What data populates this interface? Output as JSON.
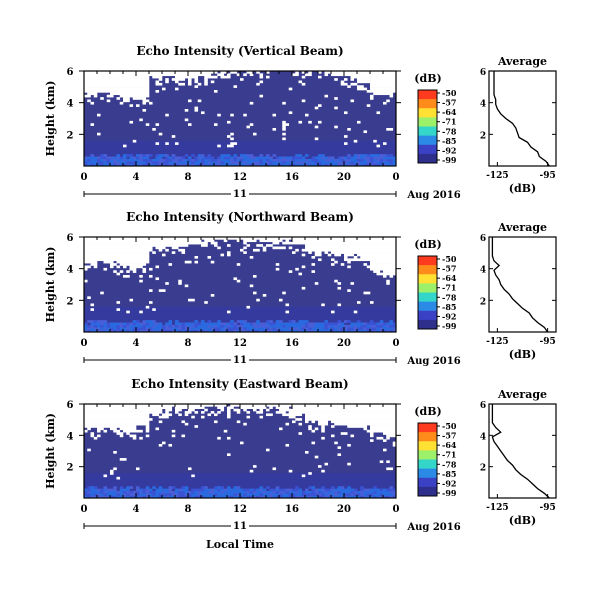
{
  "figure": {
    "date_label": "Aug 2016",
    "time_axis_label": "Local Time",
    "day_label": "11"
  },
  "chart_data": [
    {
      "type": "heatmap",
      "title": "Echo Intensity (Vertical Beam)",
      "ylabel": "Height (km)",
      "xlabel": "Local Time",
      "x_ticks": [
        "0",
        "4",
        "8",
        "12",
        "16",
        "20",
        "0"
      ],
      "y_ticks": [
        "2",
        "4",
        "6"
      ],
      "xlim": [
        0,
        24
      ],
      "ylim": [
        0,
        6
      ],
      "colorbar": {
        "unit": "(dB)",
        "ticks": [
          "-50",
          "-57",
          "-64",
          "-71",
          "-78",
          "-85",
          "-92",
          "-99"
        ],
        "colors": [
          "#ff3b1f",
          "#ff8c1a",
          "#ffe033",
          "#9cf06a",
          "#33d6c8",
          "#2a8ae6",
          "#3a41c4",
          "#2e2f8c"
        ]
      },
      "field": {
        "background_db": -95,
        "strong_echo_top_km": 0.5,
        "echo_top_km_by_hour": [
          4.3,
          4.4,
          4.2,
          4.1,
          3.9,
          5.3,
          5.4,
          5.2,
          5.4,
          5.5,
          5.6,
          5.8,
          5.9,
          5.9,
          6.0,
          6.0,
          5.8,
          5.7,
          5.6,
          5.5,
          5.4,
          5.0,
          4.4,
          4.2
        ]
      },
      "average_profile": {
        "title": "Average",
        "xlabel": "(dB)",
        "x_ticks": [
          "-125",
          "-95"
        ],
        "y_ticks": [
          "2",
          "4",
          "6"
        ],
        "xlim": [
          -130,
          -90
        ],
        "ylim": [
          0,
          6
        ],
        "height_km": [
          0.0,
          0.3,
          0.6,
          0.9,
          1.2,
          1.5,
          1.8,
          2.1,
          2.4,
          2.7,
          3.0,
          3.3,
          3.6,
          3.9,
          4.2,
          4.5,
          4.8,
          5.1,
          5.4,
          5.7,
          6.0
        ],
        "db": [
          -94,
          -96,
          -100,
          -101,
          -105,
          -107,
          -112,
          -113,
          -114,
          -116,
          -120,
          -123,
          -125,
          -126,
          -126,
          -127,
          -127,
          -127,
          -127,
          -127,
          -127
        ]
      }
    },
    {
      "type": "heatmap",
      "title": "Echo Intensity (Northward Beam)",
      "ylabel": "Height (km)",
      "xlabel": "Local Time",
      "x_ticks": [
        "0",
        "4",
        "8",
        "12",
        "16",
        "20",
        "0"
      ],
      "y_ticks": [
        "2",
        "4",
        "6"
      ],
      "xlim": [
        0,
        24
      ],
      "ylim": [
        0,
        6
      ],
      "colorbar": {
        "unit": "(dB)",
        "ticks": [
          "-50",
          "-57",
          "-64",
          "-71",
          "-78",
          "-85",
          "-92",
          "-99"
        ],
        "colors": [
          "#ff3b1f",
          "#ff8c1a",
          "#ffe033",
          "#9cf06a",
          "#33d6c8",
          "#2a8ae6",
          "#3a41c4",
          "#2e2f8c"
        ]
      },
      "field": {
        "background_db": -95,
        "strong_echo_top_km": 0.5,
        "echo_top_km_by_hour": [
          4.0,
          4.2,
          4.0,
          3.8,
          3.9,
          5.0,
          5.2,
          5.1,
          5.3,
          5.4,
          5.5,
          5.6,
          5.5,
          5.5,
          5.4,
          5.5,
          5.3,
          5.0,
          4.8,
          4.6,
          4.5,
          4.3,
          3.6,
          3.3
        ]
      },
      "average_profile": {
        "title": "Average",
        "xlabel": "(dB)",
        "x_ticks": [
          "-125",
          "-95"
        ],
        "y_ticks": [
          "2",
          "4",
          "6"
        ],
        "xlim": [
          -130,
          -90
        ],
        "ylim": [
          0,
          6
        ],
        "height_km": [
          0.0,
          0.3,
          0.6,
          0.9,
          1.2,
          1.5,
          1.8,
          2.1,
          2.4,
          2.7,
          3.0,
          3.3,
          3.6,
          3.9,
          4.2,
          4.5,
          4.8,
          5.1,
          5.4,
          5.7,
          6.0
        ],
        "db": [
          -95,
          -97,
          -101,
          -104,
          -106,
          -110,
          -113,
          -116,
          -118,
          -121,
          -123,
          -124,
          -126,
          -127,
          -124,
          -127,
          -128,
          -128,
          -128,
          -128,
          -128
        ]
      }
    },
    {
      "type": "heatmap",
      "title": "Echo Intensity (Eastward Beam)",
      "ylabel": "Height (km)",
      "xlabel": "Local Time",
      "x_ticks": [
        "0",
        "4",
        "8",
        "12",
        "16",
        "20",
        "0"
      ],
      "y_ticks": [
        "2",
        "4",
        "6"
      ],
      "xlim": [
        0,
        24
      ],
      "ylim": [
        0,
        6
      ],
      "colorbar": {
        "unit": "(dB)",
        "ticks": [
          "-50",
          "-57",
          "-64",
          "-71",
          "-78",
          "-85",
          "-92",
          "-99"
        ],
        "colors": [
          "#ff3b1f",
          "#ff8c1a",
          "#ffe033",
          "#9cf06a",
          "#33d6c8",
          "#2a8ae6",
          "#3a41c4",
          "#2e2f8c"
        ]
      },
      "field": {
        "background_db": -95,
        "strong_echo_top_km": 0.5,
        "echo_top_km_by_hour": [
          4.2,
          4.3,
          4.1,
          4.0,
          4.4,
          5.2,
          5.4,
          5.3,
          5.5,
          5.6,
          5.7,
          5.6,
          5.5,
          5.4,
          5.6,
          5.4,
          5.0,
          4.6,
          4.5,
          4.4,
          4.3,
          4.2,
          3.9,
          3.7
        ]
      },
      "average_profile": {
        "title": "Average",
        "xlabel": "(dB)",
        "x_ticks": [
          "-125",
          "-95"
        ],
        "y_ticks": [
          "2",
          "4",
          "6"
        ],
        "xlim": [
          -130,
          -90
        ],
        "ylim": [
          0,
          6
        ],
        "height_km": [
          0.0,
          0.3,
          0.6,
          0.9,
          1.2,
          1.5,
          1.8,
          2.1,
          2.4,
          2.7,
          3.0,
          3.3,
          3.6,
          3.9,
          4.2,
          4.5,
          4.8,
          5.1,
          5.4,
          5.7,
          6.0
        ],
        "db": [
          -94,
          -97,
          -101,
          -104,
          -107,
          -111,
          -114,
          -116,
          -119,
          -121,
          -123,
          -125,
          -127,
          -128,
          -123,
          -126,
          -128,
          -128,
          -128,
          -128,
          -128
        ]
      }
    }
  ]
}
